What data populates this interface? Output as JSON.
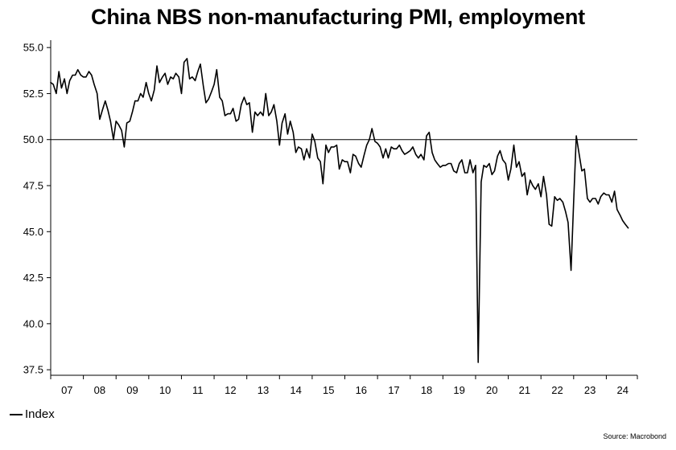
{
  "title": "China NBS non-manufacturing PMI, employment",
  "legend_label": "Index",
  "source": "Source: Macrobond",
  "chart_data": {
    "type": "line",
    "title": "China NBS non-manufacturing PMI, employment",
    "xlabel": "",
    "ylabel": "",
    "x_tick_labels": [
      "07",
      "08",
      "09",
      "10",
      "11",
      "12",
      "13",
      "14",
      "15",
      "16",
      "17",
      "18",
      "19",
      "20",
      "21",
      "22",
      "23",
      "24"
    ],
    "y_ticks": [
      37.5,
      40.0,
      42.5,
      45.0,
      47.5,
      50.0,
      52.5,
      55.0
    ],
    "y_tick_labels": [
      "37.5",
      "40.0",
      "42.5",
      "45.0",
      "47.5",
      "50.0",
      "52.5",
      "55.0"
    ],
    "ylim": [
      37.2,
      55.4
    ],
    "xlim": [
      2007.0,
      2024.95
    ],
    "reference_line": 50.0,
    "legend_position": "bottom-left",
    "grid": false,
    "series": [
      {
        "name": "Index",
        "x": [
          2007.0,
          2007.08,
          2007.17,
          2007.25,
          2007.33,
          2007.42,
          2007.5,
          2007.58,
          2007.67,
          2007.75,
          2007.83,
          2007.92,
          2008.0,
          2008.08,
          2008.17,
          2008.25,
          2008.33,
          2008.42,
          2008.5,
          2008.58,
          2008.67,
          2008.75,
          2008.83,
          2008.92,
          2009.0,
          2009.08,
          2009.17,
          2009.25,
          2009.33,
          2009.42,
          2009.5,
          2009.58,
          2009.67,
          2009.75,
          2009.83,
          2009.92,
          2010.0,
          2010.08,
          2010.17,
          2010.25,
          2010.33,
          2010.42,
          2010.5,
          2010.58,
          2010.67,
          2010.75,
          2010.83,
          2010.92,
          2011.0,
          2011.08,
          2011.17,
          2011.25,
          2011.33,
          2011.42,
          2011.5,
          2011.58,
          2011.67,
          2011.75,
          2011.83,
          2011.92,
          2012.0,
          2012.08,
          2012.17,
          2012.25,
          2012.33,
          2012.42,
          2012.5,
          2012.58,
          2012.67,
          2012.75,
          2012.83,
          2012.92,
          2013.0,
          2013.08,
          2013.17,
          2013.25,
          2013.33,
          2013.42,
          2013.5,
          2013.58,
          2013.67,
          2013.75,
          2013.83,
          2013.92,
          2014.0,
          2014.08,
          2014.17,
          2014.25,
          2014.33,
          2014.42,
          2014.5,
          2014.58,
          2014.67,
          2014.75,
          2014.83,
          2014.92,
          2015.0,
          2015.08,
          2015.17,
          2015.25,
          2015.33,
          2015.42,
          2015.5,
          2015.58,
          2015.67,
          2015.75,
          2015.83,
          2015.92,
          2016.0,
          2016.08,
          2016.17,
          2016.25,
          2016.33,
          2016.42,
          2016.5,
          2016.58,
          2016.67,
          2016.75,
          2016.83,
          2016.92,
          2017.0,
          2017.08,
          2017.17,
          2017.25,
          2017.33,
          2017.42,
          2017.5,
          2017.58,
          2017.67,
          2017.75,
          2017.83,
          2017.92,
          2018.0,
          2018.08,
          2018.17,
          2018.25,
          2018.33,
          2018.42,
          2018.5,
          2018.58,
          2018.67,
          2018.75,
          2018.83,
          2018.92,
          2019.0,
          2019.08,
          2019.17,
          2019.25,
          2019.33,
          2019.42,
          2019.5,
          2019.58,
          2019.67,
          2019.75,
          2019.83,
          2019.92,
          2020.0,
          2020.08,
          2020.17,
          2020.25,
          2020.33,
          2020.42,
          2020.5,
          2020.58,
          2020.67,
          2020.75,
          2020.83,
          2020.92,
          2021.0,
          2021.08,
          2021.17,
          2021.25,
          2021.33,
          2021.42,
          2021.5,
          2021.58,
          2021.67,
          2021.75,
          2021.83,
          2021.92,
          2022.0,
          2022.08,
          2022.17,
          2022.25,
          2022.33,
          2022.42,
          2022.5,
          2022.58,
          2022.67,
          2022.75,
          2022.83,
          2022.92,
          2023.0,
          2023.08,
          2023.17,
          2023.25,
          2023.33,
          2023.42,
          2023.5,
          2023.58,
          2023.67,
          2023.75,
          2023.83,
          2023.92,
          2024.0,
          2024.08,
          2024.17,
          2024.25,
          2024.33,
          2024.42,
          2024.5,
          2024.58,
          2024.67
        ],
        "values": [
          53.1,
          53.0,
          52.5,
          53.7,
          52.8,
          53.3,
          52.5,
          53.2,
          53.5,
          53.5,
          53.8,
          53.5,
          53.4,
          53.4,
          53.7,
          53.5,
          53.0,
          52.5,
          51.1,
          51.6,
          52.1,
          51.6,
          51.0,
          50.0,
          51.0,
          50.8,
          50.5,
          49.6,
          50.9,
          51.0,
          51.5,
          52.1,
          52.1,
          52.5,
          52.3,
          53.1,
          52.5,
          52.1,
          52.7,
          54.0,
          53.1,
          53.4,
          53.6,
          53.0,
          53.4,
          53.3,
          53.6,
          53.4,
          52.5,
          54.2,
          54.4,
          53.3,
          53.4,
          53.2,
          53.7,
          54.1,
          52.9,
          52.0,
          52.2,
          52.6,
          53.0,
          53.8,
          52.3,
          52.1,
          51.3,
          51.4,
          51.4,
          51.7,
          51.0,
          51.1,
          51.9,
          52.3,
          51.9,
          52.0,
          50.4,
          51.5,
          51.3,
          51.5,
          51.3,
          52.5,
          51.3,
          51.5,
          51.9,
          51.0,
          49.7,
          50.9,
          51.4,
          50.3,
          51.0,
          50.4,
          49.3,
          49.6,
          49.5,
          48.9,
          49.5,
          49.0,
          50.3,
          49.9,
          49.0,
          48.8,
          47.6,
          49.7,
          49.3,
          49.6,
          49.6,
          49.7,
          48.4,
          48.9,
          48.8,
          48.8,
          48.2,
          49.2,
          49.1,
          48.7,
          48.5,
          49.1,
          49.7,
          50.0,
          50.6,
          49.9,
          49.8,
          49.6,
          49.0,
          49.5,
          49.0,
          49.6,
          49.5,
          49.5,
          49.7,
          49.4,
          49.2,
          49.3,
          49.4,
          49.6,
          49.2,
          49.0,
          49.2,
          48.9,
          50.2,
          50.4,
          49.3,
          48.9,
          48.7,
          48.5,
          48.6,
          48.6,
          48.7,
          48.7,
          48.3,
          48.2,
          48.7,
          48.9,
          48.2,
          48.2,
          48.9,
          48.2,
          48.6,
          37.9,
          47.7,
          48.6,
          48.5,
          48.7,
          48.1,
          48.3,
          49.1,
          49.4,
          48.9,
          48.7,
          47.8,
          48.4,
          49.7,
          48.5,
          48.8,
          48.0,
          48.2,
          47.0,
          47.8,
          47.5,
          47.3,
          47.6,
          46.9,
          48.0,
          47.0,
          45.4,
          45.3,
          46.9,
          46.7,
          46.8,
          46.6,
          46.1,
          45.5,
          42.9,
          46.6,
          50.2,
          49.2,
          48.3,
          48.4,
          46.8,
          46.6,
          46.8,
          46.8,
          46.5,
          46.9,
          47.1,
          47.0,
          47.0,
          46.6,
          47.2,
          46.2,
          45.9,
          45.6,
          45.4,
          45.2
        ]
      }
    ]
  }
}
